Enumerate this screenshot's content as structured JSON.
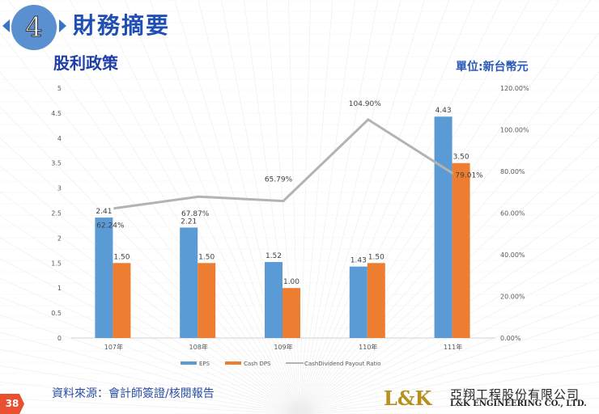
{
  "header": {
    "section_number": "4",
    "title": "財務摘要",
    "subtitle": "股利政策",
    "unit": "單位:新台幣元"
  },
  "footer": {
    "source": "資料來源：會計師簽證/核閱報告",
    "page": "38",
    "logo": "L&K",
    "company_cn": "亞翔工程股份有限公司",
    "company_en": "L&K ENGINEERING CO., LTD."
  },
  "colors": {
    "eps": "#5b9bd5",
    "dps": "#ed7d31",
    "ratio": "#b3b3b3",
    "title": "#1f4fb4"
  },
  "chart_data": {
    "type": "bar+line",
    "categories": [
      "107年",
      "108年",
      "109年",
      "110年",
      "111年"
    ],
    "series": [
      {
        "name": "EPS",
        "type": "bar",
        "axis": "left",
        "values": [
          2.41,
          2.21,
          1.52,
          1.43,
          4.43
        ],
        "labels": [
          "2.41",
          "2.21",
          "1.52",
          "1.43",
          "4.43"
        ]
      },
      {
        "name": "Cash DPS",
        "type": "bar",
        "axis": "left",
        "values": [
          1.5,
          1.5,
          1.0,
          1.5,
          3.5
        ],
        "labels": [
          "1.50",
          "1.50",
          "1.00",
          "1.50",
          "3.50"
        ]
      },
      {
        "name": "CashDividend Payout Ratio",
        "type": "line",
        "axis": "right",
        "values": [
          62.24,
          67.87,
          65.79,
          104.9,
          79.01
        ],
        "labels": [
          "62.24%",
          "67.87%",
          "65.79%",
          "104.90%",
          "79.01%"
        ]
      }
    ],
    "left_axis": {
      "ylim": [
        0,
        5
      ],
      "ticks": [
        "0",
        "0.5",
        "1",
        "1.5",
        "2",
        "2.5",
        "3",
        "3.5",
        "4",
        "4.5",
        "5"
      ]
    },
    "right_axis": {
      "ylim": [
        0,
        120
      ],
      "ticks": [
        "0.00%",
        "20.00%",
        "40.00%",
        "60.00%",
        "80.00%",
        "100.00%",
        "120.00%"
      ]
    },
    "legend": "bottom",
    "grid": false
  }
}
